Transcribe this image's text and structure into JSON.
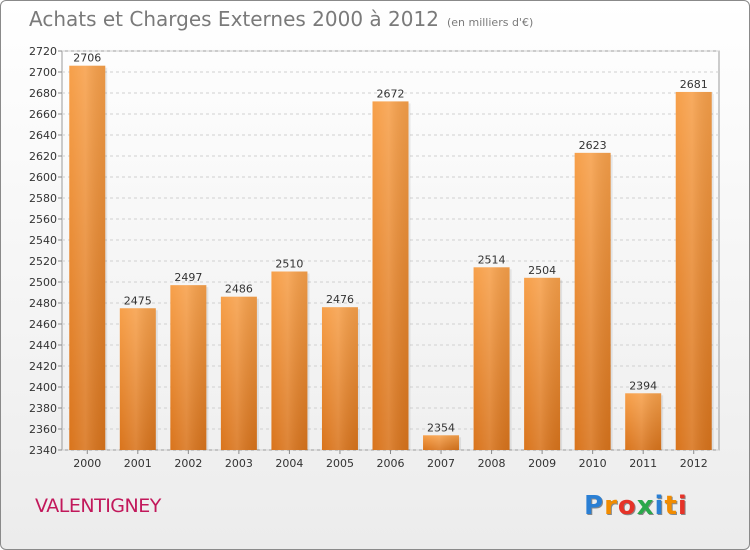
{
  "title": "Achats et Charges Externes 2000 à 2012",
  "subtitle": "(en milliers d'€)",
  "location": "VALENTIGNEY",
  "logo": {
    "letters": [
      "P",
      "r",
      "o",
      "x",
      "i",
      "t",
      "i"
    ],
    "colors": [
      "#2a7fd4",
      "#f28c00",
      "#e63328",
      "#2aa84a",
      "#2a7fd4",
      "#f28c00",
      "#e63328"
    ]
  },
  "chart_data": {
    "type": "bar",
    "title": "Achats et Charges Externes 2000 à 2012",
    "subtitle": "(en milliers d'€)",
    "xlabel": "",
    "ylabel": "",
    "categories": [
      "2000",
      "2001",
      "2002",
      "2003",
      "2004",
      "2005",
      "2006",
      "2007",
      "2008",
      "2009",
      "2010",
      "2011",
      "2012"
    ],
    "values": [
      2706,
      2475,
      2497,
      2486,
      2510,
      2476,
      2672,
      2354,
      2514,
      2504,
      2623,
      2394,
      2681
    ],
    "ylim": [
      2340,
      2720
    ],
    "yticks": [
      2340,
      2360,
      2380,
      2400,
      2420,
      2440,
      2460,
      2480,
      2500,
      2520,
      2540,
      2560,
      2580,
      2600,
      2620,
      2640,
      2660,
      2680,
      2700,
      2720
    ],
    "grid": true,
    "bar_color": "#f08a2c",
    "legend": "none"
  }
}
